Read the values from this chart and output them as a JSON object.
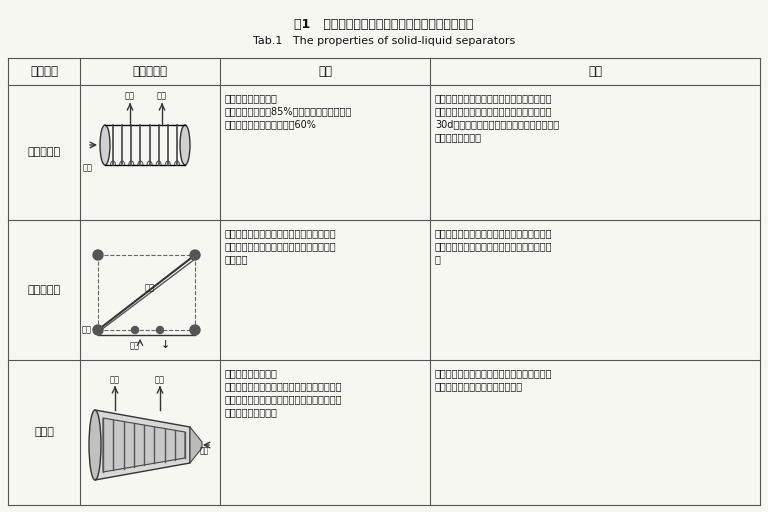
{
  "title_cn": "表1   各种常用畜禽粪污固液分离设备的主要优缺点",
  "title_en": "Tab.1   The properties of solid-liquid separators",
  "bg_color": "#f7f7f2",
  "header": [
    "设备类型",
    "工作示意图",
    "优点",
    "缺点"
  ],
  "row1_name": "板框压滤机",
  "row1_pros": "粪污处理效果最好；\n除湿率高，一般达85%左右，正常运行时，滤\n液含水率低，含水率可降到60%",
  "row1_cons": "间歇作业，滤网易堵塞；处理能力小，电耗高\n且费工；投资高，运行性能不稳定；对于放置\n30d以上的粪便污水几乎很难分离；只适用于\n管道排污的养殖场",
  "row2_name": "带式压滤机",
  "row2_pros": "处理能力大，滤饼含水率低，噪声小，能耗\n低，可连续作业；适用于大中型养殖场粪水\n固液分离",
  "row2_cons": "设备费用高，活动部件多，保养量大；带高压\n水喷洗滤带，水量大，增加了水处理系统的负\n荷",
  "row3_name": "离心机",
  "row3_pros": "设备占地面积较小；\n分离速度快，分离效率高；总固体去除率高，\n滤液含水率低；粪污处理效果好；适用于大型\n养殖场粪水固液分离",
  "row3_cons": "设备投资大，能耗高，且维修困难；运行时必\n须有人在场且操作工人劳动强度大",
  "line_color": "#555555",
  "text_color": "#111111"
}
